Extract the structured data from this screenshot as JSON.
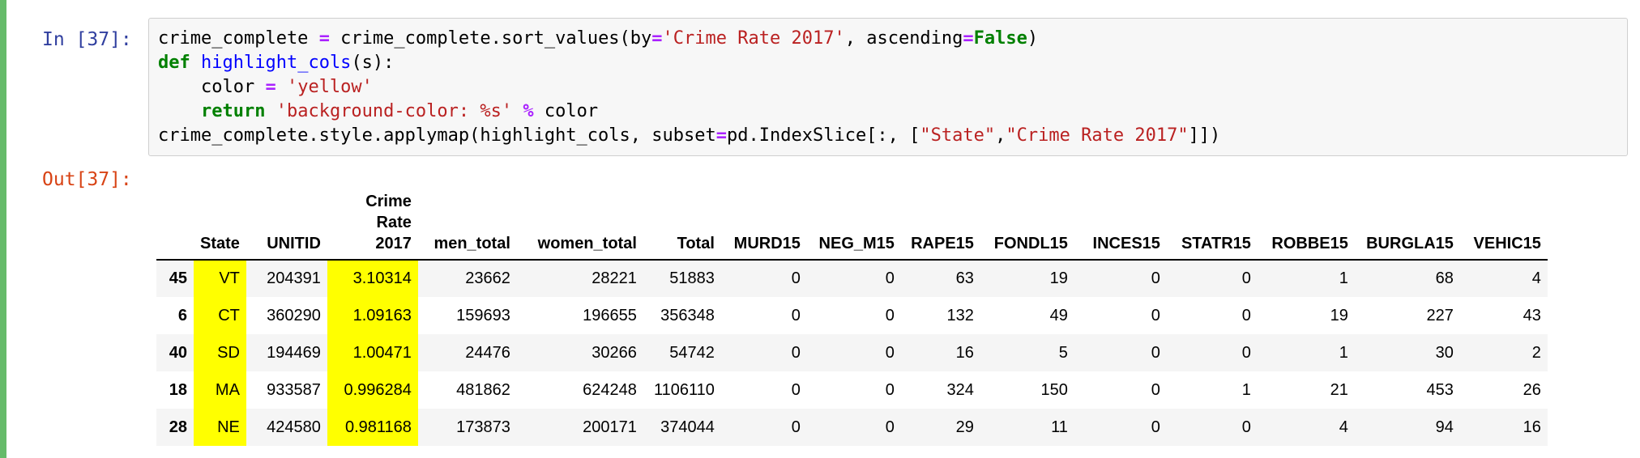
{
  "cell": {
    "in_prompt": "In [37]:",
    "out_prompt": "Out[37]:",
    "code": {
      "line1": {
        "a": "crime_complete ",
        "op1": "=",
        "b": " crime_complete.sort_values(by",
        "op2": "=",
        "s1": "'Crime Rate 2017'",
        "c": ", ascending",
        "op3": "=",
        "kw1": "False",
        "d": ")"
      },
      "line2": {
        "kw": "def",
        "sp": " ",
        "fn": "highlight_cols",
        "rest": "(s):"
      },
      "line3": {
        "a": "    color ",
        "op": "=",
        "sp": " ",
        "str": "'yellow'"
      },
      "line4": {
        "ind": "    ",
        "kw": "return",
        "sp": " ",
        "str": "'background-color: %s'",
        "sp2": " ",
        "op": "%",
        "rest": " color"
      },
      "line5": {
        "a": "crime_complete.style.applymap(highlight_cols, subset",
        "op": "=",
        "b": "pd.IndexSlice[:, [",
        "s1": "\"State\"",
        "c": ",",
        "s2": "\"Crime Rate 2017\"",
        "d": "]])"
      }
    }
  },
  "table": {
    "highlight_color": "#ffff00",
    "headers": [
      "",
      "State",
      "UNITID",
      "Crime\nRate\n2017",
      "men_total",
      "women_total",
      "Total",
      "MURD15",
      "NEG_M15",
      "RAPE15",
      "FONDL15",
      "INCES15",
      "STATR15",
      "ROBBE15",
      "BURGLA15",
      "VEHIC15"
    ],
    "rows": [
      [
        "45",
        "VT",
        "204391",
        "3.10314",
        "23662",
        "28221",
        "51883",
        "0",
        "0",
        "63",
        "19",
        "0",
        "0",
        "1",
        "68",
        "4"
      ],
      [
        "6",
        "CT",
        "360290",
        "1.09163",
        "159693",
        "196655",
        "356348",
        "0",
        "0",
        "132",
        "49",
        "0",
        "0",
        "19",
        "227",
        "43"
      ],
      [
        "40",
        "SD",
        "194469",
        "1.00471",
        "24476",
        "30266",
        "54742",
        "0",
        "0",
        "16",
        "5",
        "0",
        "0",
        "1",
        "30",
        "2"
      ],
      [
        "18",
        "MA",
        "933587",
        "0.996284",
        "481862",
        "624248",
        "1106110",
        "0",
        "0",
        "324",
        "150",
        "0",
        "1",
        "21",
        "453",
        "26"
      ],
      [
        "28",
        "NE",
        "424580",
        "0.981168",
        "173873",
        "200171",
        "374044",
        "0",
        "0",
        "29",
        "11",
        "0",
        "0",
        "4",
        "94",
        "16"
      ]
    ]
  }
}
